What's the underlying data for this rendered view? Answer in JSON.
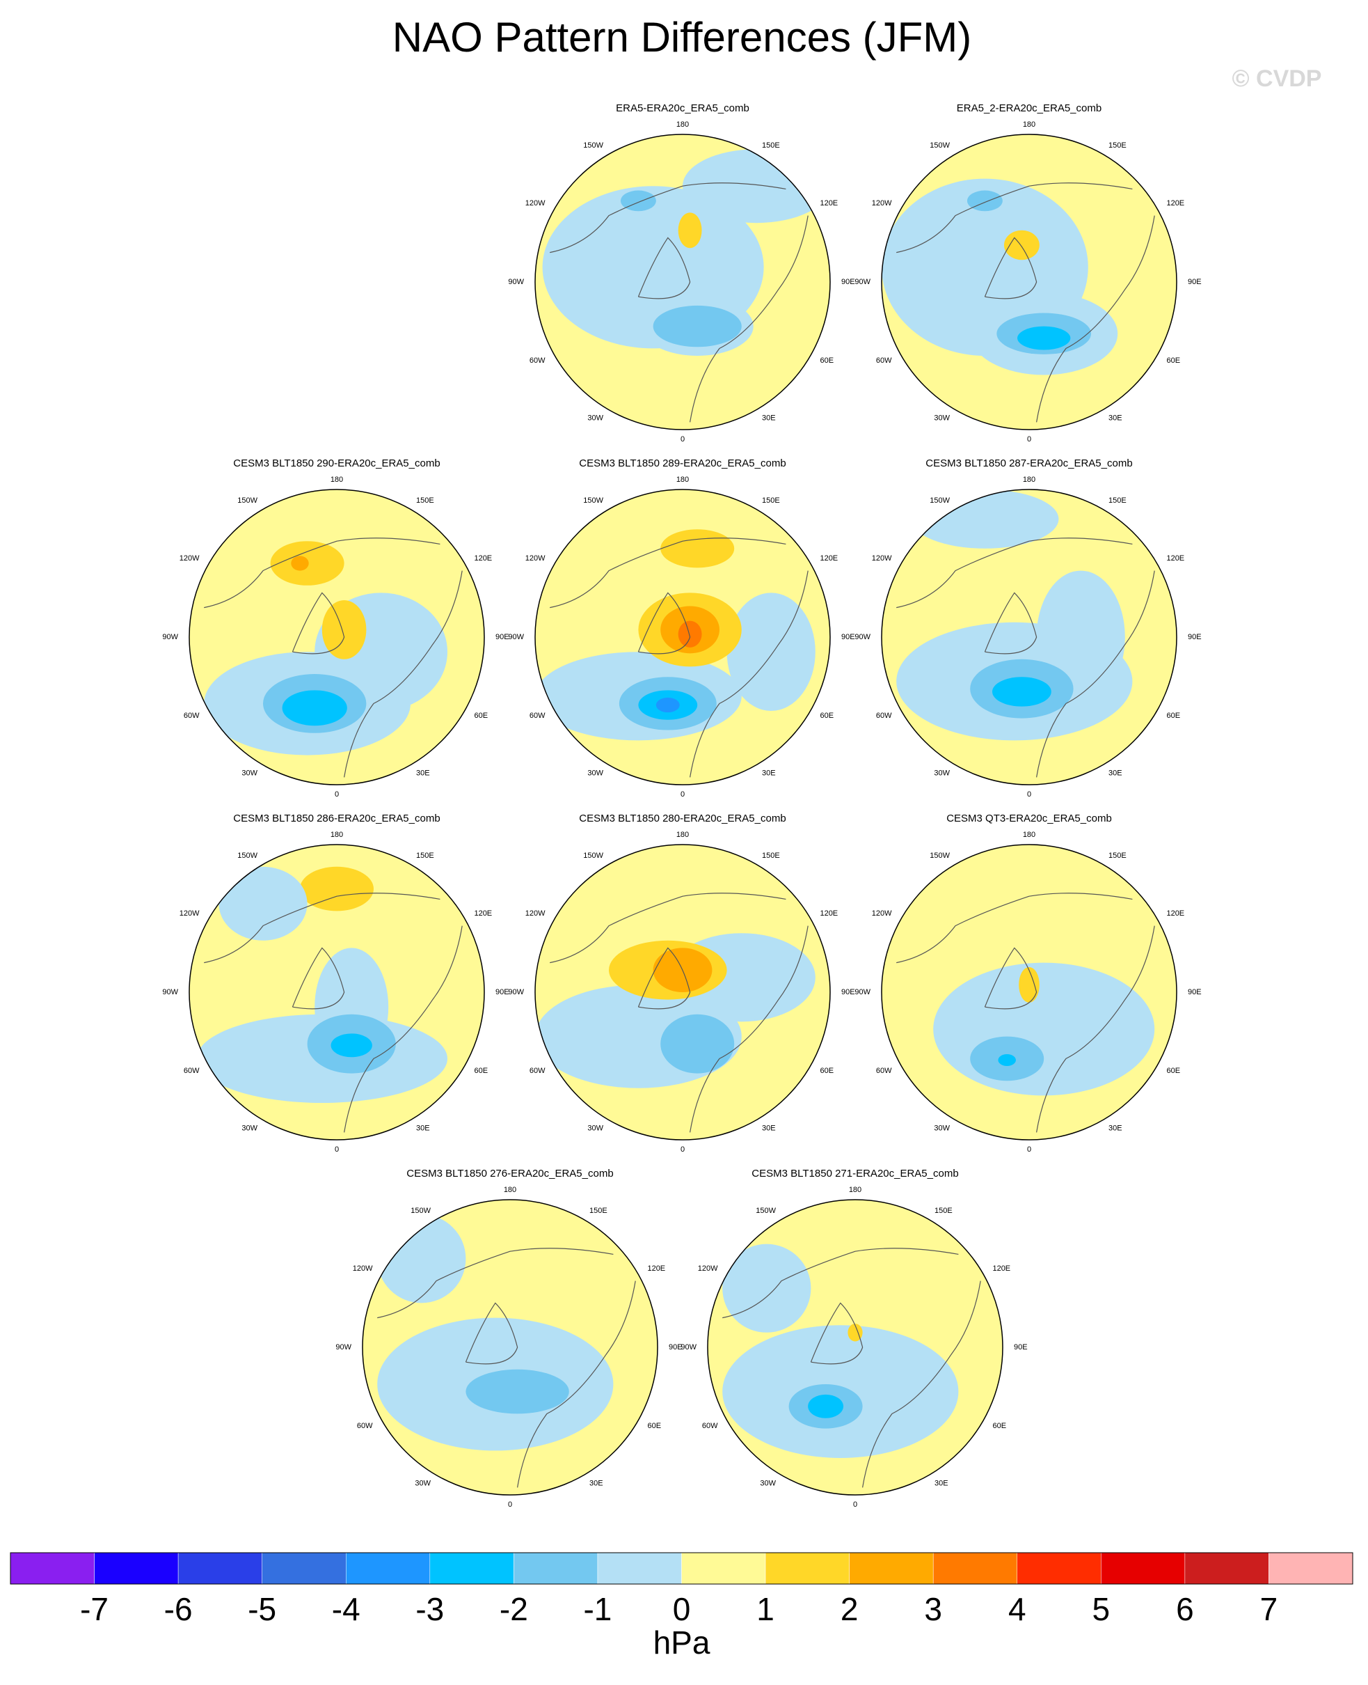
{
  "title": "NAO Pattern Differences (JFM)",
  "watermark": "© CVDP",
  "lon_labels": [
    "180",
    "150E",
    "120E",
    "90E",
    "60E",
    "30E",
    "0",
    "30W",
    "60W",
    "90W",
    "120W",
    "150W"
  ],
  "panels": [
    {
      "title": "ERA5-ERA20c_ERA5_comb"
    },
    {
      "title": "ERA5_2-ERA20c_ERA5_comb"
    },
    {
      "title": "CESM3 BLT1850 290-ERA20c_ERA5_comb"
    },
    {
      "title": "CESM3 BLT1850 289-ERA20c_ERA5_comb"
    },
    {
      "title": "CESM3 BLT1850 287-ERA20c_ERA5_comb"
    },
    {
      "title": "CESM3 BLT1850 286-ERA20c_ERA5_comb"
    },
    {
      "title": "CESM3 BLT1850 280-ERA20c_ERA5_comb"
    },
    {
      "title": "CESM3 QT3-ERA20c_ERA5_comb"
    },
    {
      "title": "CESM3 BLT1850 276-ERA20c_ERA5_comb"
    },
    {
      "title": "CESM3 BLT1850 271-ERA20c_ERA5_comb"
    }
  ],
  "colorbar": {
    "colors": [
      "#8a1ff0",
      "#1a00ff",
      "#2a3fe8",
      "#3470e0",
      "#1e96ff",
      "#00c3ff",
      "#73c8f0",
      "#b4e0f5",
      "#fffa96",
      "#ffd728",
      "#ffaa00",
      "#ff7a00",
      "#ff2d00",
      "#e60000",
      "#cc1e1e",
      "#ffb4b4"
    ],
    "ticks": [
      -7,
      -6,
      -5,
      -4,
      -3,
      -2,
      -1,
      0,
      1,
      2,
      3,
      4,
      5,
      6,
      7
    ],
    "label": "hPa"
  }
}
